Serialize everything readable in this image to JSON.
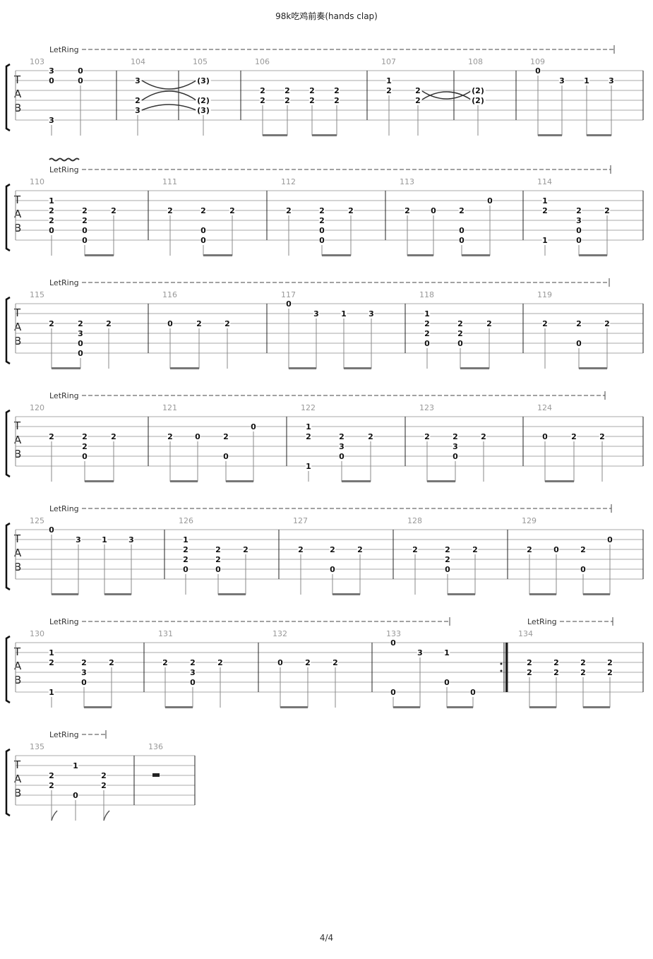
{
  "title": "98k吃鸡前奏(hands clap)",
  "page": "4/4",
  "tab_letters": [
    "T",
    "A",
    "B"
  ],
  "let_ring_label": "LetRing",
  "systems": [
    {
      "measures": [
        {
          "number": "103",
          "beats": [
            {
              "frets": {
                "1": "3",
                "2": "0",
                "6": "3"
              }
            },
            {
              "frets": {
                "1": "0",
                "2": "0"
              }
            }
          ],
          "beams": []
        },
        {
          "number": "104",
          "beats": [
            {
              "frets": {
                "2": "3",
                "4": "2",
                "5": "3"
              }
            }
          ],
          "beams": [],
          "tie_to_next": true
        },
        {
          "number": "105",
          "beats": [
            {
              "frets": {
                "2": "(3)",
                "4": "(2)",
                "5": "(3)"
              }
            }
          ],
          "beams": []
        },
        {
          "number": "106",
          "beats": [
            {
              "frets": {
                "3": "2",
                "4": "2"
              }
            },
            {
              "frets": {
                "3": "2",
                "4": "2"
              }
            },
            {
              "frets": {
                "3": "2",
                "4": "2"
              }
            },
            {
              "frets": {
                "3": "2",
                "4": "2"
              }
            }
          ],
          "beams": [
            [
              0,
              1
            ],
            [
              2,
              3
            ]
          ]
        },
        {
          "number": "107",
          "beats": [
            {
              "frets": {
                "2": "1",
                "3": "2"
              }
            },
            {
              "frets": {
                "3": "2",
                "4": "2"
              }
            }
          ],
          "beams": [],
          "tie_to_next": true
        },
        {
          "number": "108",
          "beats": [
            {
              "frets": {
                "3": "(2)",
                "4": "(2)"
              }
            }
          ],
          "beams": []
        },
        {
          "number": "109",
          "beats": [
            {
              "frets": {
                "1": "0"
              }
            },
            {
              "frets": {
                "2": "3"
              }
            },
            {
              "frets": {
                "2": "1"
              }
            },
            {
              "frets": {
                "2": "3"
              }
            }
          ],
          "beams": [
            [
              0,
              1
            ],
            [
              2,
              3
            ]
          ]
        }
      ],
      "let_ring": [
        {
          "vibrato": false
        }
      ]
    },
    {
      "measures": [
        {
          "number": "110",
          "beats": [
            {
              "frets": {
                "2": "1",
                "3": "2",
                "4": "2",
                "5": "0"
              }
            },
            {
              "frets": {
                "3": "2",
                "4": "2",
                "5": "0",
                "6": "0"
              }
            },
            {
              "frets": {
                "3": "2"
              }
            }
          ],
          "beams": [
            [
              1,
              2
            ]
          ]
        },
        {
          "number": "111",
          "beats": [
            {
              "frets": {
                "3": "2"
              }
            },
            {
              "frets": {
                "3": "2",
                "5": "0",
                "6": "0"
              }
            },
            {
              "frets": {
                "3": "2"
              }
            }
          ],
          "beams": [
            [
              1,
              2
            ]
          ]
        },
        {
          "number": "112",
          "beats": [
            {
              "frets": {
                "3": "2"
              }
            },
            {
              "frets": {
                "3": "2",
                "4": "2",
                "5": "0",
                "6": "0"
              }
            },
            {
              "frets": {
                "3": "2"
              }
            }
          ],
          "beams": [
            [
              1,
              2
            ]
          ]
        },
        {
          "number": "113",
          "beats": [
            {
              "frets": {
                "3": "2"
              }
            },
            {
              "frets": {
                "3": "0"
              }
            },
            {
              "frets": {
                "3": "2",
                "5": "0",
                "6": "0"
              }
            },
            {
              "frets": {
                "2": "0"
              }
            }
          ],
          "beams": [
            [
              0,
              1
            ],
            [
              2,
              3
            ]
          ]
        },
        {
          "number": "114",
          "beats": [
            {
              "frets": {
                "2": "1",
                "3": "2",
                "6": "1"
              }
            },
            {
              "frets": {
                "3": "2",
                "4": "3",
                "5": "0",
                "6": "0"
              }
            },
            {
              "frets": {
                "3": "2"
              }
            }
          ],
          "beams": [
            [
              1,
              2
            ]
          ]
        }
      ],
      "let_ring": [
        {
          "vibrato": true
        }
      ]
    },
    {
      "measures": [
        {
          "number": "115",
          "beats": [
            {
              "frets": {
                "3": "2"
              }
            },
            {
              "frets": {
                "3": "2",
                "4": "3",
                "5": "0",
                "6": "0"
              }
            },
            {
              "frets": {
                "3": "2"
              }
            }
          ],
          "beams": [
            [
              0,
              1
            ]
          ]
        },
        {
          "number": "116",
          "beats": [
            {
              "frets": {
                "3": "0"
              }
            },
            {
              "frets": {
                "3": "2"
              }
            },
            {
              "frets": {
                "3": "2"
              }
            }
          ],
          "beams": [
            [
              0,
              1
            ]
          ]
        },
        {
          "number": "117",
          "beats": [
            {
              "frets": {
                "1": "0"
              }
            },
            {
              "frets": {
                "2": "3"
              }
            },
            {
              "frets": {
                "2": "1"
              }
            },
            {
              "frets": {
                "2": "3"
              }
            }
          ],
          "beams": [
            [
              0,
              1
            ],
            [
              2,
              3
            ]
          ]
        },
        {
          "number": "118",
          "beats": [
            {
              "frets": {
                "2": "1",
                "3": "2",
                "4": "2",
                "5": "0"
              }
            },
            {
              "frets": {
                "3": "2",
                "4": "2",
                "5": "0"
              }
            },
            {
              "frets": {
                "3": "2"
              }
            }
          ],
          "beams": [
            [
              1,
              2
            ]
          ]
        },
        {
          "number": "119",
          "beats": [
            {
              "frets": {
                "3": "2"
              }
            },
            {
              "frets": {
                "3": "2",
                "5": "0"
              }
            },
            {
              "frets": {
                "3": "2"
              }
            }
          ],
          "beams": [
            [
              1,
              2
            ]
          ]
        }
      ],
      "let_ring": [
        {
          "vibrato": false
        }
      ]
    },
    {
      "measures": [
        {
          "number": "120",
          "beats": [
            {
              "frets": {
                "3": "2"
              }
            },
            {
              "frets": {
                "3": "2",
                "4": "2",
                "5": "0"
              }
            },
            {
              "frets": {
                "3": "2"
              }
            }
          ],
          "beams": [
            [
              1,
              2
            ]
          ]
        },
        {
          "number": "121",
          "beats": [
            {
              "frets": {
                "3": "2"
              }
            },
            {
              "frets": {
                "3": "0"
              }
            },
            {
              "frets": {
                "3": "2",
                "5": "0"
              }
            },
            {
              "frets": {
                "2": "0"
              }
            }
          ],
          "beams": [
            [
              0,
              1
            ],
            [
              2,
              3
            ]
          ]
        },
        {
          "number": "122",
          "beats": [
            {
              "frets": {
                "2": "1",
                "3": "2",
                "6": "1"
              }
            },
            {
              "frets": {
                "3": "2",
                "4": "3",
                "5": "0"
              }
            },
            {
              "frets": {
                "3": "2"
              }
            }
          ],
          "beams": [
            [
              1,
              2
            ]
          ]
        },
        {
          "number": "123",
          "beats": [
            {
              "frets": {
                "3": "2"
              }
            },
            {
              "frets": {
                "3": "2",
                "4": "3",
                "5": "0"
              }
            },
            {
              "frets": {
                "3": "2"
              }
            }
          ],
          "beams": [
            [
              0,
              1
            ]
          ]
        },
        {
          "number": "124",
          "beats": [
            {
              "frets": {
                "3": "0"
              }
            },
            {
              "frets": {
                "3": "2"
              }
            },
            {
              "frets": {
                "3": "2"
              }
            }
          ],
          "beams": [
            [
              0,
              1
            ]
          ]
        }
      ],
      "let_ring": [
        {
          "vibrato": false
        }
      ]
    },
    {
      "measures": [
        {
          "number": "125",
          "beats": [
            {
              "frets": {
                "1": "0"
              }
            },
            {
              "frets": {
                "2": "3"
              }
            },
            {
              "frets": {
                "2": "1"
              }
            },
            {
              "frets": {
                "2": "3"
              }
            }
          ],
          "beams": [
            [
              0,
              1
            ],
            [
              2,
              3
            ]
          ]
        },
        {
          "number": "126",
          "beats": [
            {
              "frets": {
                "2": "1",
                "3": "2",
                "4": "2",
                "5": "0"
              }
            },
            {
              "frets": {
                "3": "2",
                "4": "2",
                "5": "0"
              }
            },
            {
              "frets": {
                "3": "2"
              }
            }
          ],
          "beams": [
            [
              1,
              2
            ]
          ]
        },
        {
          "number": "127",
          "beats": [
            {
              "frets": {
                "3": "2"
              }
            },
            {
              "frets": {
                "3": "2",
                "5": "0"
              }
            },
            {
              "frets": {
                "3": "2"
              }
            }
          ],
          "beams": [
            [
              1,
              2
            ]
          ]
        },
        {
          "number": "128",
          "beats": [
            {
              "frets": {
                "3": "2"
              }
            },
            {
              "frets": {
                "3": "2",
                "4": "2",
                "5": "0"
              }
            },
            {
              "frets": {
                "3": "2"
              }
            }
          ],
          "beams": [
            [
              1,
              2
            ]
          ]
        },
        {
          "number": "129",
          "beats": [
            {
              "frets": {
                "3": "2"
              }
            },
            {
              "frets": {
                "3": "0"
              }
            },
            {
              "frets": {
                "3": "2",
                "5": "0"
              }
            },
            {
              "frets": {
                "2": "0"
              }
            }
          ],
          "beams": [
            [
              0,
              1
            ],
            [
              2,
              3
            ]
          ]
        }
      ],
      "let_ring": [
        {
          "vibrato": false
        }
      ]
    },
    {
      "measures": [
        {
          "number": "130",
          "beats": [
            {
              "frets": {
                "2": "1",
                "3": "2",
                "6": "1"
              }
            },
            {
              "frets": {
                "3": "2",
                "4": "3",
                "5": "0"
              }
            },
            {
              "frets": {
                "3": "2"
              }
            }
          ],
          "beams": [
            [
              1,
              2
            ]
          ]
        },
        {
          "number": "131",
          "beats": [
            {
              "frets": {
                "3": "2"
              }
            },
            {
              "frets": {
                "3": "2",
                "4": "3",
                "5": "0"
              }
            },
            {
              "frets": {
                "3": "2"
              }
            }
          ],
          "beams": [
            [
              0,
              1
            ]
          ]
        },
        {
          "number": "132",
          "beats": [
            {
              "frets": {
                "3": "0"
              }
            },
            {
              "frets": {
                "3": "2"
              }
            },
            {
              "frets": {
                "3": "2"
              }
            }
          ],
          "beams": [
            [
              0,
              1
            ]
          ]
        },
        {
          "number": "133",
          "beats": [
            {
              "frets": {
                "1": "0",
                "6": "0"
              }
            },
            {
              "frets": {
                "2": "3"
              }
            },
            {
              "frets": {
                "2": "1",
                "5": "0"
              }
            },
            {
              "frets": {
                "6": "0"
              }
            }
          ],
          "beams": [
            [
              0,
              1
            ],
            [
              2,
              3
            ]
          ],
          "repeat_end": true
        },
        {
          "number": "134",
          "beats": [
            {
              "frets": {
                "3": "2",
                "4": "2"
              }
            },
            {
              "frets": {
                "3": "2",
                "4": "2"
              }
            },
            {
              "frets": {
                "3": "2",
                "4": "2"
              }
            },
            {
              "frets": {
                "3": "2",
                "4": "2"
              }
            }
          ],
          "beams": [
            [
              0,
              1
            ],
            [
              2,
              3
            ]
          ]
        }
      ],
      "let_ring": [
        {
          "vibrato": false
        },
        {
          "vibrato": false
        }
      ]
    },
    {
      "measures": [
        {
          "number": "135",
          "beats": [
            {
              "frets": {
                "3": "2",
                "4": "2"
              },
              "flag": true
            },
            {
              "frets": {
                "2": "1",
                "5": "0"
              }
            },
            {
              "frets": {
                "3": "2",
                "4": "2"
              },
              "flag": true
            }
          ],
          "beams": []
        },
        {
          "number": "136",
          "beats": [],
          "beams": [],
          "rest": true
        }
      ],
      "let_ring": [
        {
          "vibrato": false
        }
      ]
    }
  ]
}
